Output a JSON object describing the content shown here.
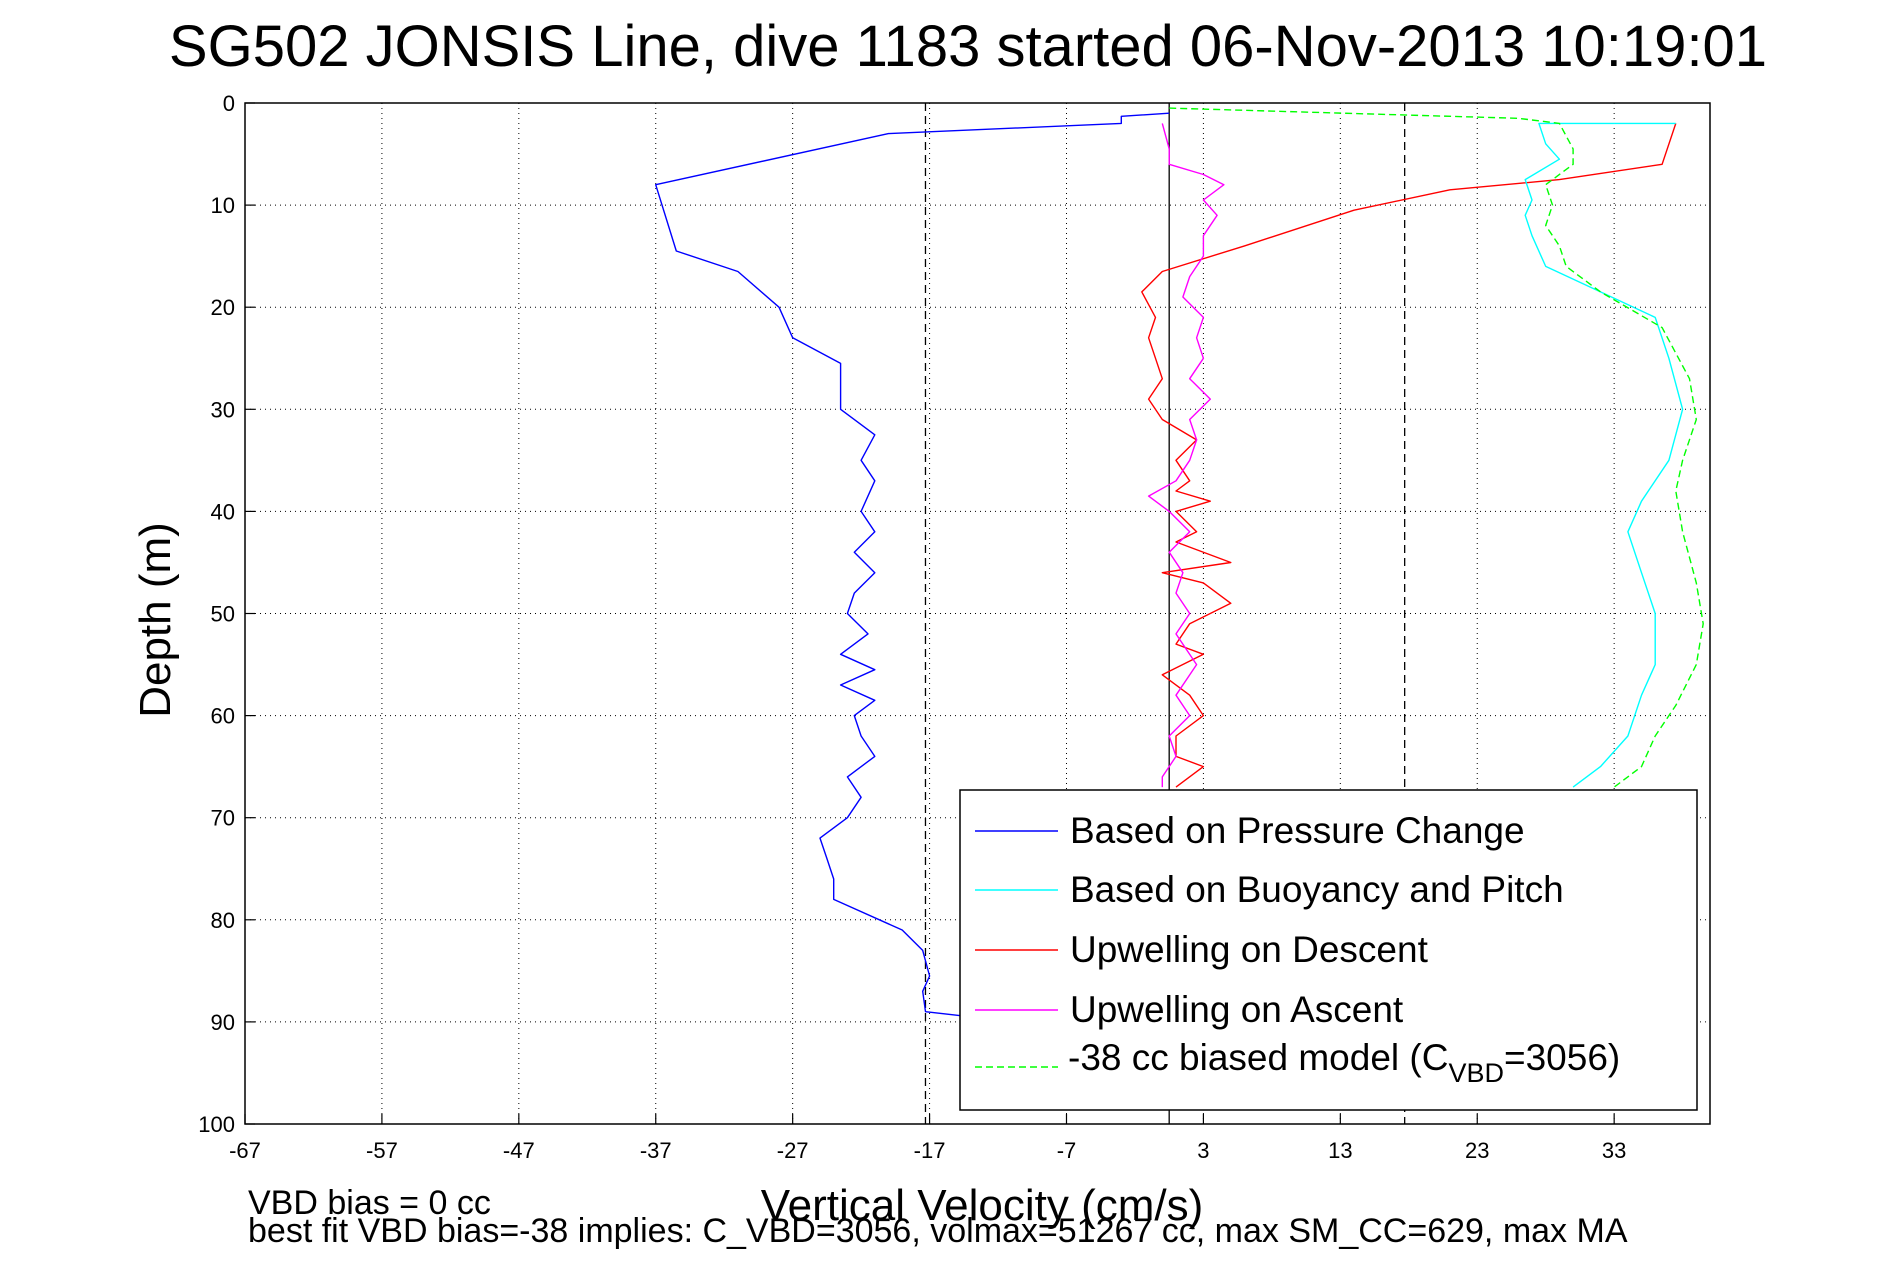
{
  "chart_data": {
    "type": "line",
    "title": "SG502 JONSIS Line, dive 1183 started 06-Nov-2013 10:19:01",
    "xlabel": "Vertical Velocity (cm/s)",
    "ylabel": "Depth (m)",
    "xlim": [
      -67,
      40
    ],
    "ylim": [
      0,
      100
    ],
    "y_reversed": true,
    "grid": true,
    "x_ticks": [
      "-67",
      "-57",
      "-47",
      "-37",
      "-27",
      "-17",
      "-7",
      "3",
      "13",
      "23",
      "33"
    ],
    "y_ticks": [
      "0",
      "10",
      "20",
      "30",
      "40",
      "50",
      "60",
      "70",
      "80",
      "90",
      "100"
    ],
    "legend_position": "bottom-right",
    "reference_lines": [
      {
        "x": -17.3,
        "style": "dashed",
        "color": "#000000"
      },
      {
        "x": 0.5,
        "style": "solid",
        "color": "#000000"
      },
      {
        "x": 17.7,
        "style": "dashed",
        "color": "#000000"
      }
    ],
    "series": [
      {
        "name": "Based on Pressure Change",
        "color": "#0000ff",
        "style": "solid",
        "points": [
          [
            0.5,
            1
          ],
          [
            -3,
            1.3
          ],
          [
            -3,
            2
          ],
          [
            -20,
            3
          ],
          [
            -37,
            8
          ],
          [
            -35.5,
            14.5
          ],
          [
            -31,
            16.5
          ],
          [
            -28,
            20
          ],
          [
            -27,
            23
          ],
          [
            -23.5,
            25.5
          ],
          [
            -23.5,
            30
          ],
          [
            -21,
            32.5
          ],
          [
            -22,
            35
          ],
          [
            -21,
            37
          ],
          [
            -22,
            40
          ],
          [
            -21,
            42
          ],
          [
            -22.5,
            44
          ],
          [
            -21,
            46
          ],
          [
            -22.5,
            48
          ],
          [
            -23,
            50
          ],
          [
            -21.5,
            52
          ],
          [
            -23.5,
            54
          ],
          [
            -21,
            55.5
          ],
          [
            -23.5,
            57
          ],
          [
            -21,
            58.5
          ],
          [
            -22.5,
            60
          ],
          [
            -22,
            62
          ],
          [
            -21,
            64
          ],
          [
            -23,
            66
          ],
          [
            -22,
            68
          ],
          [
            -23,
            70
          ],
          [
            -25,
            72
          ],
          [
            -24.5,
            74
          ],
          [
            -24,
            76
          ],
          [
            -24,
            78
          ],
          [
            -19,
            81
          ],
          [
            -17.5,
            83
          ],
          [
            -17,
            85.5
          ],
          [
            -17.5,
            87
          ],
          [
            -17.3,
            89
          ],
          [
            -14,
            89.5
          ]
        ]
      },
      {
        "name": "Upwelling on Descent",
        "color": "#ff0000",
        "style": "solid",
        "points": [
          [
            37.5,
            2
          ],
          [
            36.5,
            6
          ],
          [
            29,
            7.5
          ],
          [
            21,
            8.5
          ],
          [
            14,
            10.5
          ],
          [
            6,
            14
          ],
          [
            0,
            16.5
          ],
          [
            -1.5,
            18.5
          ],
          [
            -0.5,
            21
          ],
          [
            -1,
            23
          ],
          [
            -0.5,
            25
          ],
          [
            0,
            27
          ],
          [
            -1,
            29
          ],
          [
            0,
            31
          ],
          [
            2.5,
            33
          ],
          [
            1,
            35
          ],
          [
            2,
            37
          ],
          [
            1,
            38
          ],
          [
            3.5,
            39
          ],
          [
            1,
            40
          ],
          [
            2.5,
            42
          ],
          [
            1,
            43
          ],
          [
            5,
            45
          ],
          [
            0,
            46
          ],
          [
            3,
            47
          ],
          [
            5,
            49
          ],
          [
            2,
            51
          ],
          [
            1,
            53
          ],
          [
            3,
            54
          ],
          [
            0,
            56
          ],
          [
            2,
            58
          ],
          [
            3,
            60
          ],
          [
            1,
            62
          ],
          [
            1,
            64
          ],
          [
            3,
            65
          ],
          [
            1,
            67
          ]
        ]
      },
      {
        "name": "Upwelling on Ascent",
        "color": "#ff00ff",
        "style": "solid",
        "points": [
          [
            0,
            2
          ],
          [
            0.5,
            4.5
          ],
          [
            0.5,
            6
          ],
          [
            3,
            7
          ],
          [
            4.5,
            8
          ],
          [
            3,
            9.5
          ],
          [
            4,
            11
          ],
          [
            3,
            13
          ],
          [
            3,
            15
          ],
          [
            2,
            17
          ],
          [
            1.5,
            19
          ],
          [
            3,
            21
          ],
          [
            2.5,
            23
          ],
          [
            3,
            25
          ],
          [
            2,
            27
          ],
          [
            3.5,
            29
          ],
          [
            2,
            31
          ],
          [
            2.5,
            33
          ],
          [
            2,
            35
          ],
          [
            1,
            37
          ],
          [
            -1,
            38.5
          ],
          [
            0.5,
            40
          ],
          [
            2,
            42
          ],
          [
            0.5,
            44
          ],
          [
            1.5,
            46
          ],
          [
            1,
            48
          ],
          [
            2,
            50
          ],
          [
            1,
            52
          ],
          [
            2.5,
            55
          ],
          [
            1,
            58
          ],
          [
            2,
            60
          ],
          [
            0.5,
            62
          ],
          [
            1,
            64
          ],
          [
            0,
            66
          ],
          [
            0,
            67
          ]
        ]
      },
      {
        "name": "Based on Buoyancy and Pitch",
        "color": "#00ffff",
        "style": "solid",
        "points": [
          [
            37.5,
            2
          ],
          [
            34,
            2
          ],
          [
            27.5,
            2
          ],
          [
            28,
            4
          ],
          [
            29,
            5.5
          ],
          [
            26.5,
            7.5
          ],
          [
            27,
            9.5
          ],
          [
            26.5,
            11
          ],
          [
            27,
            13
          ],
          [
            28,
            16
          ],
          [
            32,
            18.5
          ],
          [
            36,
            21
          ],
          [
            37,
            25
          ],
          [
            38,
            30
          ],
          [
            37,
            35
          ],
          [
            35,
            39
          ],
          [
            34,
            42
          ],
          [
            35,
            46
          ],
          [
            36,
            50
          ],
          [
            36,
            55
          ],
          [
            35,
            58
          ],
          [
            34,
            62
          ],
          [
            32,
            65
          ],
          [
            30,
            67
          ]
        ]
      },
      {
        "name": "-38 cc biased model (C_VBD=3056)",
        "color": "#00ff00",
        "style": "dashed",
        "points": [
          [
            0.5,
            0.5
          ],
          [
            26,
            1.5
          ],
          [
            29,
            2
          ],
          [
            30,
            4.5
          ],
          [
            30,
            6
          ],
          [
            28,
            8
          ],
          [
            28.5,
            10
          ],
          [
            28,
            12
          ],
          [
            29,
            14
          ],
          [
            29.5,
            16
          ],
          [
            32,
            18.5
          ],
          [
            36.5,
            22
          ],
          [
            38.5,
            27
          ],
          [
            39,
            31
          ],
          [
            38,
            35
          ],
          [
            37.5,
            38
          ],
          [
            38,
            42
          ],
          [
            39,
            47
          ],
          [
            39.5,
            51
          ],
          [
            39,
            55
          ],
          [
            37.5,
            59
          ],
          [
            36,
            62
          ],
          [
            35,
            65
          ],
          [
            33,
            67
          ]
        ]
      }
    ]
  },
  "legend": {
    "entries": [
      "Based on Pressure Change",
      "Based on Buoyancy and Pitch",
      "Upwelling on Descent",
      "Upwelling on Ascent"
    ],
    "model_prefix": "-38 cc biased model (C",
    "model_sub": "VBD",
    "model_suffix": "=3056)"
  },
  "footnote": {
    "line1": "VBD bias = 0 cc",
    "line2": "best fit VBD bias=-38 implies: C_VBD=3056, volmax=51267 cc, max SM_CC=629, max MA"
  }
}
